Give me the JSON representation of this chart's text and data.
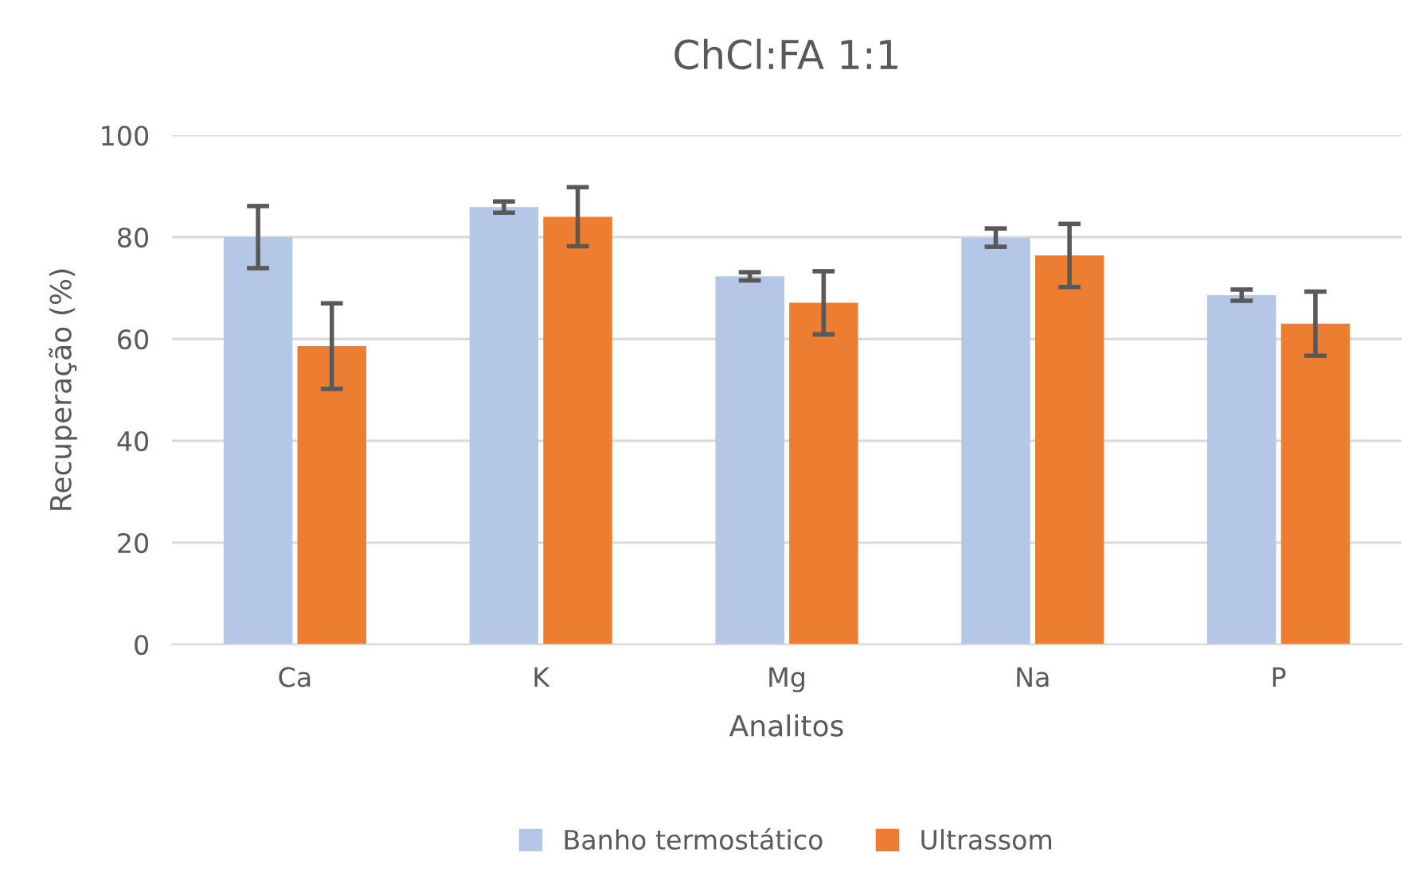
{
  "chart_data": {
    "type": "bar",
    "title": "ChCl:FA 1:1",
    "xlabel": "Analitos",
    "ylabel": "Recuperação (%)",
    "categories": [
      "Ca",
      "K",
      "Mg",
      "Na",
      "P"
    ],
    "series": [
      {
        "name": "Banho termostático",
        "color": "#b4c7e7",
        "values": [
          80,
          85.9,
          72.3,
          79.9,
          68.6
        ],
        "errors": [
          6.1,
          1.1,
          0.8,
          1.8,
          1.1
        ]
      },
      {
        "name": "Ultrassom",
        "color": "#ed7d31",
        "values": [
          58.6,
          84,
          67.1,
          76.4,
          63
        ],
        "errors": [
          8.4,
          5.8,
          6.2,
          6.2,
          6.3
        ]
      }
    ],
    "ylim": [
      0,
      100
    ],
    "yticks": [
      0,
      20,
      40,
      60,
      80,
      100
    ],
    "grid": "y",
    "legend": "bottom"
  }
}
